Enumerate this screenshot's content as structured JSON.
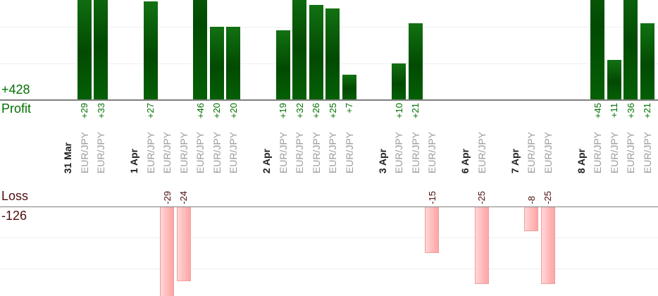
{
  "chart_data": {
    "type": "bar",
    "orientation": "vertical-columns",
    "description": "Daily trade results split into an upper profit panel (green bars growing up from the profit axis) and a lower loss panel (pink bars hanging down from the loss axis); top of tall profit bars is cropped by the image edge",
    "instrument": "EUR/JPY",
    "panels": {
      "profit": {
        "label": "Profit",
        "total": 428,
        "total_label": "+428",
        "gridline_values": [
          10,
          20
        ]
      },
      "loss": {
        "label": "Loss",
        "total": -126,
        "total_label": "-126",
        "gridline_values": [
          -10,
          -20
        ]
      }
    },
    "categories": [
      "31 Mar",
      "1 Apr",
      "2 Apr",
      "3 Apr",
      "6 Apr",
      "7 Apr",
      "8 Apr"
    ],
    "groups": [
      {
        "date": "31 Mar",
        "trades": [
          {
            "pair": "EUR/JPY",
            "value": 29,
            "label": "+29"
          },
          {
            "pair": "EUR/JPY",
            "value": 33,
            "label": "+33"
          }
        ]
      },
      {
        "date": "1 Apr",
        "trades": [
          {
            "pair": "EUR/JPY",
            "value": 27,
            "label": "+27"
          },
          {
            "pair": "EUR/JPY",
            "value": -29,
            "label": "-29"
          },
          {
            "pair": "EUR/JPY",
            "value": -24,
            "label": "-24"
          },
          {
            "pair": "EUR/JPY",
            "value": 46,
            "label": "+46"
          },
          {
            "pair": "EUR/JPY",
            "value": 20,
            "label": "+20"
          },
          {
            "pair": "EUR/JPY",
            "value": 20,
            "label": "+20"
          }
        ]
      },
      {
        "date": "2 Apr",
        "trades": [
          {
            "pair": "EUR/JPY",
            "value": 19,
            "label": "+19"
          },
          {
            "pair": "EUR/JPY",
            "value": 32,
            "label": "+32"
          },
          {
            "pair": "EUR/JPY",
            "value": 26,
            "label": "+26"
          },
          {
            "pair": "EUR/JPY",
            "value": 25,
            "label": "+25"
          },
          {
            "pair": "EUR/JPY",
            "value": 7,
            "label": "+7"
          }
        ]
      },
      {
        "date": "3 Apr",
        "trades": [
          {
            "pair": "EUR/JPY",
            "value": 10,
            "label": "+10"
          },
          {
            "pair": "EUR/JPY",
            "value": 21,
            "label": "+21"
          },
          {
            "pair": "EUR/JPY",
            "value": -15,
            "label": "-15"
          }
        ]
      },
      {
        "date": "6 Apr",
        "trades": [
          {
            "pair": "EUR/JPY",
            "value": -25,
            "label": "-25"
          }
        ]
      },
      {
        "date": "7 Apr",
        "trades": [
          {
            "pair": "EUR/JPY",
            "value": -8,
            "label": "-8"
          },
          {
            "pair": "EUR/JPY",
            "value": -25,
            "label": "-25"
          }
        ]
      },
      {
        "date": "8 Apr",
        "trades": [
          {
            "pair": "EUR/JPY",
            "value": 45,
            "label": "+45"
          },
          {
            "pair": "EUR/JPY",
            "value": 11,
            "label": "+11"
          },
          {
            "pair": "EUR/JPY",
            "value": 36,
            "label": "+36"
          },
          {
            "pair": "EUR/JPY",
            "value": 21,
            "label": "+21"
          }
        ]
      }
    ],
    "colors": {
      "profit_text": "#007000",
      "loss_text": "#4d0d0d",
      "date_text": "#1f1f1f",
      "pair_text": "#9c9c9c",
      "axis_line": "#7f7f7f",
      "gridline": "#f0f0f0",
      "profit_bar_light": "#127112",
      "profit_bar_dark": "#024a02",
      "loss_bar_light": "#ffd6d6",
      "loss_bar_dark": "#ffa4a4",
      "loss_bar_border": "#f09e9e"
    },
    "layout_hints": {
      "legend": "none",
      "grid": "horizontal-only",
      "value_labels_rotated_90": true,
      "category_labels_rotated_90": true
    }
  }
}
